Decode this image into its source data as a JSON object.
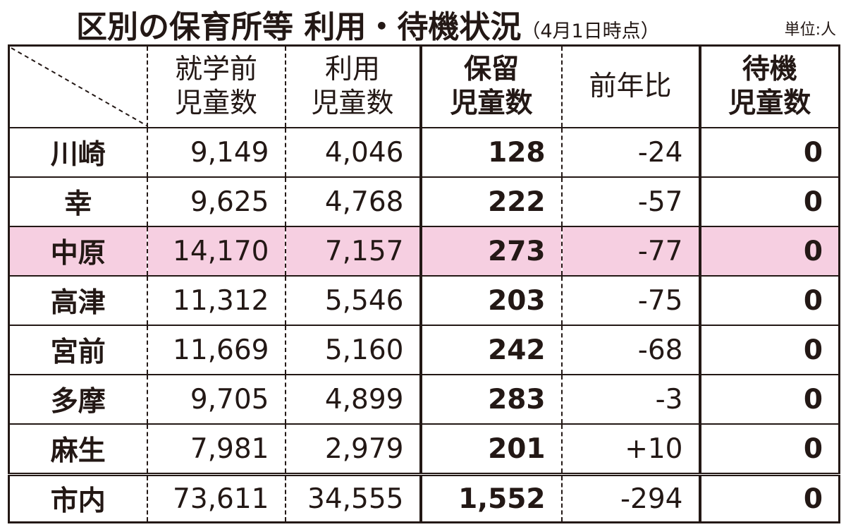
{
  "title": "区別の保育所等 利用・待機状況",
  "title_note": "（4月1日時点）",
  "unit": "単位:人",
  "chart_data": {
    "type": "table",
    "columns": [
      {
        "key": "preschool",
        "lines": [
          "就学前",
          "児童数"
        ]
      },
      {
        "key": "using",
        "lines": [
          "利用",
          "児童数"
        ]
      },
      {
        "key": "on_hold",
        "lines": [
          "保留",
          "児童数"
        ]
      },
      {
        "key": "yoy",
        "lines": [
          "前年比"
        ]
      },
      {
        "key": "waiting",
        "lines": [
          "待機",
          "児童数"
        ]
      }
    ],
    "rows": [
      {
        "ward": "川崎",
        "preschool": "9,149",
        "using": "4,046",
        "on_hold": "128",
        "yoy": "-24",
        "waiting": "0"
      },
      {
        "ward": "幸",
        "preschool": "9,625",
        "using": "4,768",
        "on_hold": "222",
        "yoy": "-57",
        "waiting": "0"
      },
      {
        "ward": "中原",
        "preschool": "14,170",
        "using": "7,157",
        "on_hold": "273",
        "yoy": "-77",
        "waiting": "0"
      },
      {
        "ward": "高津",
        "preschool": "11,312",
        "using": "5,546",
        "on_hold": "203",
        "yoy": "-75",
        "waiting": "0"
      },
      {
        "ward": "宮前",
        "preschool": "11,669",
        "using": "5,160",
        "on_hold": "242",
        "yoy": "-68",
        "waiting": "0"
      },
      {
        "ward": "多摩",
        "preschool": "9,705",
        "using": "4,899",
        "on_hold": "283",
        "yoy": "-3",
        "waiting": "0"
      },
      {
        "ward": "麻生",
        "preschool": "7,981",
        "using": "2,979",
        "on_hold": "201",
        "yoy": "+10",
        "waiting": "0"
      }
    ],
    "total": {
      "ward": "市内",
      "preschool": "73,611",
      "using": "34,555",
      "on_hold": "1,552",
      "yoy": "-294",
      "waiting": "0"
    },
    "highlight_row": "中原",
    "highlight_color": "#f6cfe1",
    "line_color": "#231815"
  }
}
